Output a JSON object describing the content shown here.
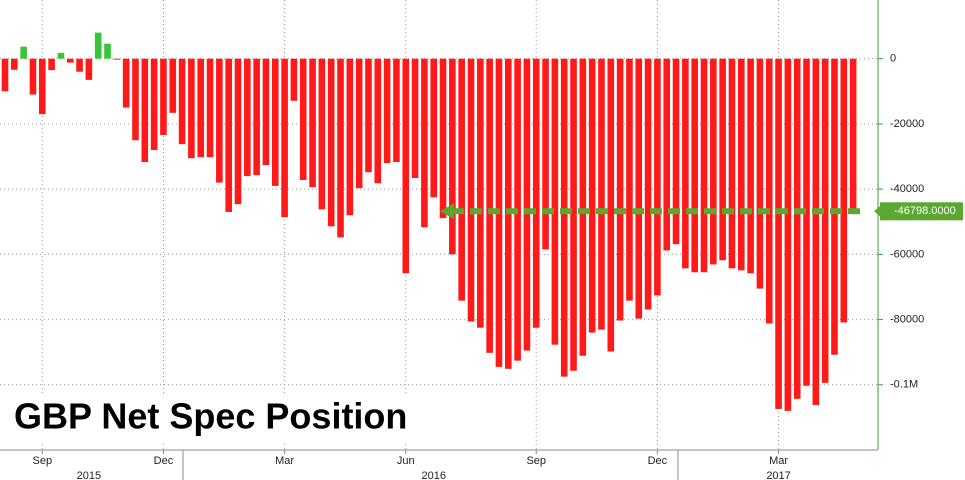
{
  "chart_data": {
    "type": "bar",
    "title": "GBP Net Spec Position",
    "categories": [
      null,
      null,
      null,
      null,
      "Sep",
      null,
      null,
      null,
      null,
      null,
      null,
      null,
      null,
      null,
      null,
      null,
      null,
      "Dec",
      null,
      null,
      null,
      null,
      null,
      null,
      null,
      null,
      null,
      null,
      null,
      null,
      "Mar",
      null,
      null,
      null,
      null,
      null,
      null,
      null,
      null,
      null,
      null,
      null,
      null,
      "Jun",
      null,
      null,
      null,
      null,
      null,
      null,
      null,
      null,
      null,
      null,
      null,
      null,
      null,
      "Sep",
      null,
      null,
      null,
      null,
      null,
      null,
      null,
      null,
      null,
      null,
      null,
      null,
      "Dec",
      null,
      null,
      null,
      null,
      null,
      null,
      null,
      null,
      null,
      null,
      null,
      null,
      "Mar",
      null,
      null,
      null,
      null,
      null,
      null,
      null,
      null
    ],
    "years": [
      null,
      null,
      null,
      null,
      null,
      null,
      null,
      null,
      null,
      "2015",
      null,
      null,
      null,
      null,
      null,
      null,
      null,
      null,
      null,
      null,
      null,
      null,
      null,
      null,
      null,
      null,
      null,
      null,
      null,
      null,
      null,
      null,
      null,
      null,
      null,
      null,
      null,
      null,
      null,
      null,
      null,
      null,
      null,
      null,
      null,
      null,
      "2016",
      null,
      null,
      null,
      null,
      null,
      null,
      null,
      null,
      null,
      null,
      null,
      null,
      null,
      null,
      null,
      null,
      null,
      null,
      null,
      null,
      null,
      null,
      null,
      null,
      null,
      null,
      null,
      null,
      null,
      null,
      null,
      null,
      null,
      null,
      null,
      null,
      "2017",
      null,
      null,
      null,
      null,
      null,
      null,
      null,
      null
    ],
    "values": [
      -10000,
      -3400,
      3700,
      -11000,
      -17000,
      -3500,
      1800,
      -1200,
      -4000,
      -6500,
      8000,
      4600,
      -300,
      -15000,
      -25000,
      -31700,
      -28000,
      -23400,
      -16600,
      -26200,
      -30500,
      -30200,
      -30200,
      -38000,
      -47000,
      -44600,
      -36000,
      -35700,
      -32600,
      -39000,
      -48600,
      -12900,
      -37200,
      -39400,
      -46200,
      -51400,
      -54800,
      -48000,
      -39700,
      -34800,
      -38200,
      -32000,
      -31700,
      -65800,
      -36600,
      -51700,
      -42500,
      -48900,
      -60000,
      -74200,
      -80600,
      -82500,
      -90200,
      -94500,
      -95100,
      -92600,
      -89500,
      -82500,
      -58500,
      -87700,
      -97500,
      -95700,
      -91100,
      -84000,
      -83100,
      -89800,
      -80300,
      -74200,
      -79700,
      -76900,
      -72600,
      -58800,
      -56900,
      -64300,
      -65500,
      -65500,
      -63100,
      -61800,
      -64300,
      -64900,
      -65800,
      -70500,
      -81200,
      -107400,
      -108000,
      -104300,
      -100300,
      -106200,
      -99400,
      -90800,
      -80900,
      -46798
    ],
    "positive_color": "#3ac43a",
    "negative_color": "#ff1a1a",
    "ylim": [
      -120000,
      18000
    ],
    "yticks": [
      0,
      -20000,
      -40000,
      -60000,
      -80000,
      {
        "value": -100000,
        "label": "-0.1M"
      }
    ],
    "grid": true,
    "reference_line": {
      "value": -46798,
      "label": "-46798.0000",
      "color": "#5aa832"
    }
  }
}
